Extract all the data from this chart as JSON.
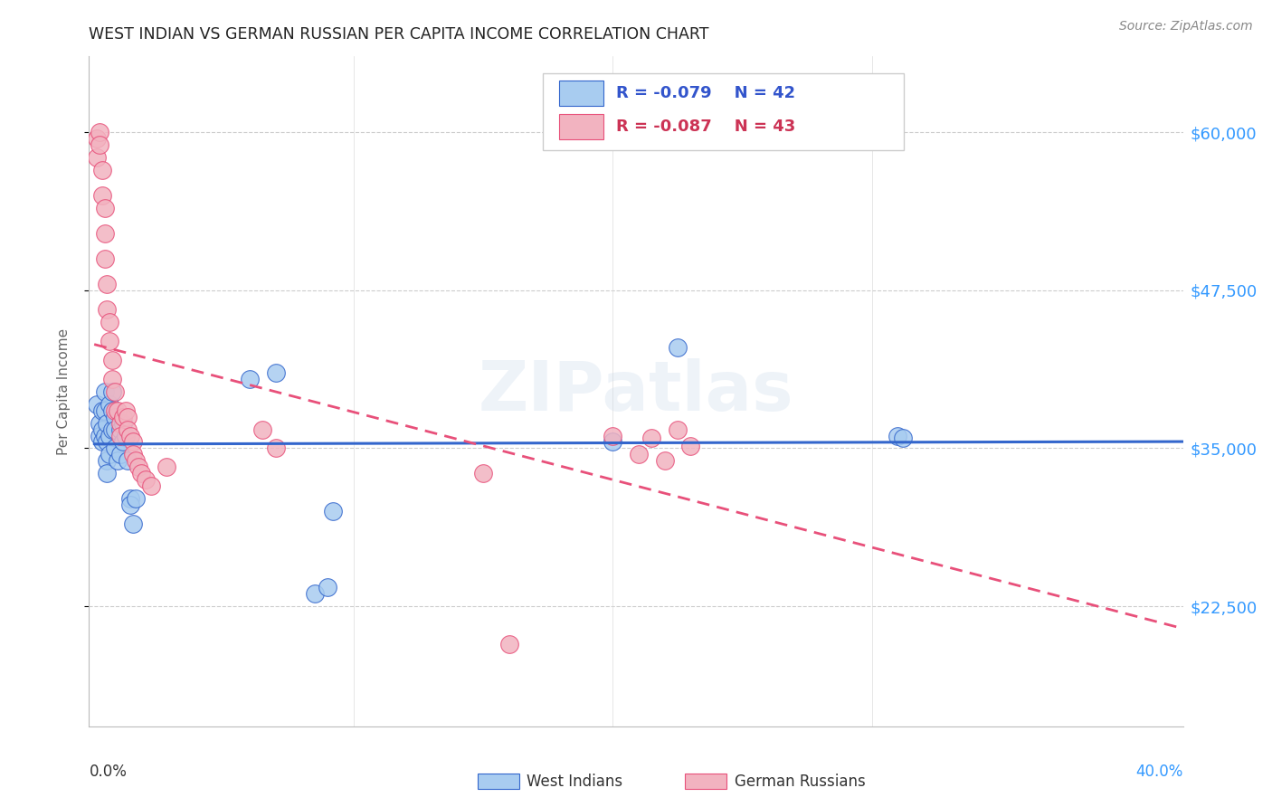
{
  "title": "WEST INDIAN VS GERMAN RUSSIAN PER CAPITA INCOME CORRELATION CHART",
  "source": "Source: ZipAtlas.com",
  "ylabel": "Per Capita Income",
  "ytick_labels": [
    "$22,500",
    "$35,000",
    "$47,500",
    "$60,000"
  ],
  "ytick_values": [
    22500,
    35000,
    47500,
    60000
  ],
  "ymin": 13000,
  "ymax": 66000,
  "xmin": -0.002,
  "xmax": 0.42,
  "legend_blue_r": "R = -0.079",
  "legend_blue_n": "N = 42",
  "legend_pink_r": "R = -0.087",
  "legend_pink_n": "N = 43",
  "blue_fill": "#A8CCF0",
  "pink_fill": "#F2B3C0",
  "line_blue": "#3366CC",
  "line_pink": "#E8507A",
  "watermark": "ZIPatlas",
  "wi_x": [
    0.001,
    0.002,
    0.002,
    0.003,
    0.003,
    0.003,
    0.004,
    0.004,
    0.004,
    0.005,
    0.005,
    0.005,
    0.005,
    0.006,
    0.006,
    0.006,
    0.007,
    0.007,
    0.007,
    0.008,
    0.008,
    0.008,
    0.009,
    0.01,
    0.01,
    0.011,
    0.011,
    0.012,
    0.013,
    0.014,
    0.014,
    0.015,
    0.016,
    0.06,
    0.07,
    0.085,
    0.09,
    0.092,
    0.2,
    0.225,
    0.31,
    0.312
  ],
  "wi_y": [
    38500,
    37000,
    36000,
    38000,
    36500,
    35500,
    39500,
    38000,
    36000,
    37000,
    35500,
    34000,
    33000,
    38500,
    36000,
    34500,
    39500,
    38000,
    36500,
    37500,
    36500,
    35000,
    34000,
    36500,
    34500,
    37000,
    35500,
    36000,
    34000,
    31000,
    30500,
    29000,
    31000,
    40500,
    41000,
    23500,
    24000,
    30000,
    35500,
    43000,
    36000,
    35800
  ],
  "gr_x": [
    0.001,
    0.001,
    0.002,
    0.002,
    0.003,
    0.003,
    0.004,
    0.004,
    0.004,
    0.005,
    0.005,
    0.006,
    0.006,
    0.007,
    0.007,
    0.008,
    0.008,
    0.009,
    0.01,
    0.01,
    0.011,
    0.012,
    0.013,
    0.013,
    0.014,
    0.015,
    0.015,
    0.016,
    0.017,
    0.018,
    0.02,
    0.022,
    0.028,
    0.065,
    0.07,
    0.15,
    0.16,
    0.2,
    0.21,
    0.215,
    0.22,
    0.225,
    0.23
  ],
  "gr_y": [
    59500,
    58000,
    60000,
    59000,
    57000,
    55000,
    54000,
    52000,
    50000,
    48000,
    46000,
    45000,
    43500,
    42000,
    40500,
    39500,
    38000,
    38000,
    37000,
    36000,
    37500,
    38000,
    37500,
    36500,
    36000,
    35500,
    34500,
    34000,
    33500,
    33000,
    32500,
    32000,
    33500,
    36500,
    35000,
    33000,
    19500,
    36000,
    34500,
    35800,
    34000,
    36500,
    35200
  ]
}
